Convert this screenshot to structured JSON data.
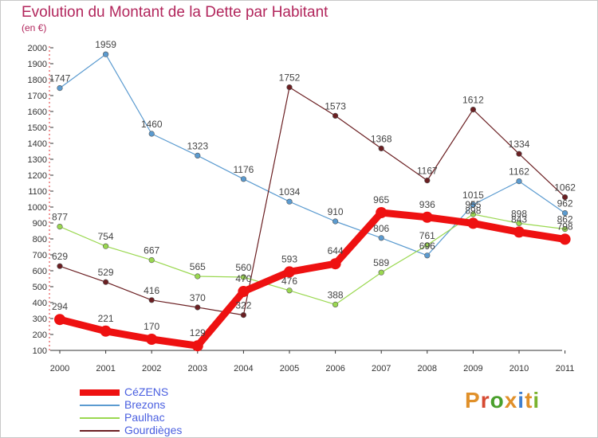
{
  "title": "Evolution du Montant de la Dette par Habitant",
  "unit": "(en €)",
  "logo": {
    "text": "Proxiti",
    "colors": [
      "#e0902a",
      "#d64a32",
      "#4aa02c",
      "#e0902a",
      "#3f7fd0",
      "#e0902a",
      "#7bb32e"
    ]
  },
  "chart_data": {
    "type": "line",
    "title": "Evolution du Montant de la Dette par Habitant",
    "ylabel": "(en €)",
    "xlabel": "",
    "x": [
      "2000",
      "2001",
      "2002",
      "2003",
      "2004",
      "2005",
      "2006",
      "2007",
      "2008",
      "2009",
      "2010",
      "2011"
    ],
    "ylim": [
      100,
      2000
    ],
    "yticks": [
      100,
      200,
      300,
      400,
      500,
      600,
      700,
      800,
      900,
      1000,
      1100,
      1200,
      1300,
      1400,
      1500,
      1600,
      1700,
      1800,
      1900,
      2000
    ],
    "grid": false,
    "legend_position": "bottom-left",
    "series": [
      {
        "name": "Brezons",
        "color": "#5b9bd0",
        "values": [
          1747,
          1959,
          1460,
          1323,
          1176,
          1034,
          910,
          806,
          696,
          1015,
          1162,
          962
        ],
        "labels": [
          "1747",
          "1959",
          "1460",
          "1323",
          "1176",
          "1034",
          "910",
          "806",
          "696",
          "1015",
          "1162",
          "962"
        ]
      },
      {
        "name": "Paulhac",
        "color": "#9ad850",
        "values": [
          877,
          754,
          667,
          565,
          560,
          476,
          388,
          589,
          761,
          955,
          898,
          862
        ],
        "labels": [
          "877",
          "754",
          "667",
          "565",
          "560",
          "476",
          "388",
          "589",
          "761",
          "955",
          "898",
          "862"
        ]
      },
      {
        "name": "Gourdièges",
        "color": "#6b1f22",
        "values": [
          629,
          529,
          416,
          370,
          322,
          1752,
          1573,
          1368,
          1167,
          1612,
          1334,
          1062
        ],
        "labels": [
          "629",
          "529",
          "416",
          "370",
          "322",
          "1752",
          "1573",
          "1368",
          "1167",
          "1612",
          "1334",
          "1062"
        ]
      },
      {
        "name": "CéZENS",
        "color": "#ee1111",
        "values": [
          294,
          221,
          170,
          129,
          470,
          593,
          644,
          965,
          936,
          898,
          843,
          798
        ],
        "labels": [
          "294",
          "221",
          "170",
          "129",
          "470",
          "593",
          "644",
          "965",
          "936",
          "898",
          "843",
          "798"
        ]
      }
    ],
    "legend": [
      "CéZENS",
      "Brezons",
      "Paulhac",
      "Gourdièges"
    ]
  }
}
